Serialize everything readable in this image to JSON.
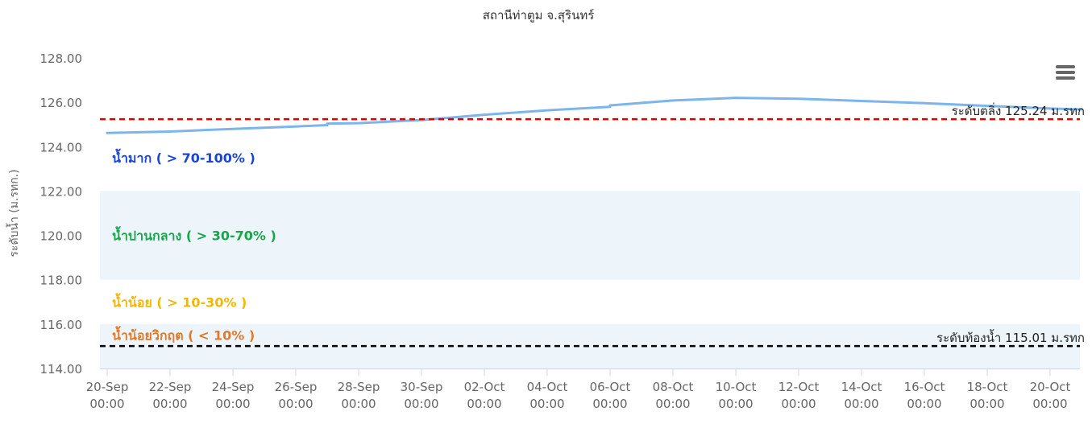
{
  "chart_data": {
    "type": "line",
    "title": "สถานีท่าตูม จ.สุรินทร์",
    "ylabel": "ระดับน้ำ (ม.รทก.)",
    "ylim": [
      114,
      128
    ],
    "xlim": [
      "2024-09-20",
      "2024-10-21"
    ],
    "y_ticks": [
      "114.00",
      "116.00",
      "118.00",
      "120.00",
      "122.00",
      "124.00",
      "126.00",
      "128.00"
    ],
    "x_ticks": [
      {
        "date": "2024-09-20",
        "day": "20-Sep",
        "time": "00:00"
      },
      {
        "date": "2024-09-22",
        "day": "22-Sep",
        "time": "00:00"
      },
      {
        "date": "2024-09-24",
        "day": "24-Sep",
        "time": "00:00"
      },
      {
        "date": "2024-09-26",
        "day": "26-Sep",
        "time": "00:00"
      },
      {
        "date": "2024-09-28",
        "day": "28-Sep",
        "time": "00:00"
      },
      {
        "date": "2024-09-30",
        "day": "30-Sep",
        "time": "00:00"
      },
      {
        "date": "2024-10-02",
        "day": "02-Oct",
        "time": "00:00"
      },
      {
        "date": "2024-10-04",
        "day": "04-Oct",
        "time": "00:00"
      },
      {
        "date": "2024-10-06",
        "day": "06-Oct",
        "time": "00:00"
      },
      {
        "date": "2024-10-08",
        "day": "08-Oct",
        "time": "00:00"
      },
      {
        "date": "2024-10-10",
        "day": "10-Oct",
        "time": "00:00"
      },
      {
        "date": "2024-10-12",
        "day": "12-Oct",
        "time": "00:00"
      },
      {
        "date": "2024-10-14",
        "day": "14-Oct",
        "time": "00:00"
      },
      {
        "date": "2024-10-16",
        "day": "16-Oct",
        "time": "00:00"
      },
      {
        "date": "2024-10-18",
        "day": "18-Oct",
        "time": "00:00"
      },
      {
        "date": "2024-10-20",
        "day": "20-Oct",
        "time": "00:00"
      }
    ],
    "series": [
      {
        "color": "#7cb5ec",
        "points": [
          [
            "2024-09-20",
            124.62
          ],
          [
            "2024-09-22",
            124.68
          ],
          [
            "2024-09-24",
            124.8
          ],
          [
            "2024-09-26",
            124.91
          ],
          [
            "2024-09-27",
            124.97
          ],
          [
            "2024-09-27",
            125.04
          ],
          [
            "2024-09-28",
            125.06
          ],
          [
            "2024-09-30",
            125.2
          ],
          [
            "2024-10-02",
            125.44
          ],
          [
            "2024-10-04",
            125.64
          ],
          [
            "2024-10-06",
            125.8
          ],
          [
            "2024-10-06",
            125.86
          ],
          [
            "2024-10-08",
            126.08
          ],
          [
            "2024-10-10",
            126.2
          ],
          [
            "2024-10-12",
            126.16
          ],
          [
            "2024-10-14",
            126.06
          ],
          [
            "2024-10-16",
            125.96
          ],
          [
            "2024-10-18",
            125.84
          ],
          [
            "2024-10-20",
            125.72
          ],
          [
            "2024-10-21",
            125.68
          ]
        ]
      }
    ],
    "plot_bands": [
      {
        "from": 118,
        "to": 122,
        "color": "#edf5fb"
      },
      {
        "from": 114,
        "to": 116,
        "color": "#edf5fb"
      }
    ],
    "plot_lines": [
      {
        "value": 125.24,
        "color": "#dd0000",
        "label": "ระดับตลิ่ง 125.24 ม.รทก"
      },
      {
        "value": 115.01,
        "color": "#000000",
        "label": "ระดับท้องน้ำ 115.01 ม.รทก"
      }
    ],
    "zone_labels": [
      {
        "text": "น้ำมาก ( > 70-100% )",
        "color": "#1a44d8",
        "value": 123.5
      },
      {
        "text": "น้ำปานกลาง ( > 30-70% )",
        "color": "#14a84a",
        "value": 120.0
      },
      {
        "text": "น้ำน้อย ( > 10-30% )",
        "color": "#f0b800",
        "value": 117.0
      },
      {
        "text": "น้ำน้อยวิกฤต ( < 10% )",
        "color": "#e07a2a",
        "value": 115.5
      }
    ],
    "grid": false,
    "legend": "none"
  },
  "menu": {
    "icon": "hamburger-menu-icon"
  }
}
